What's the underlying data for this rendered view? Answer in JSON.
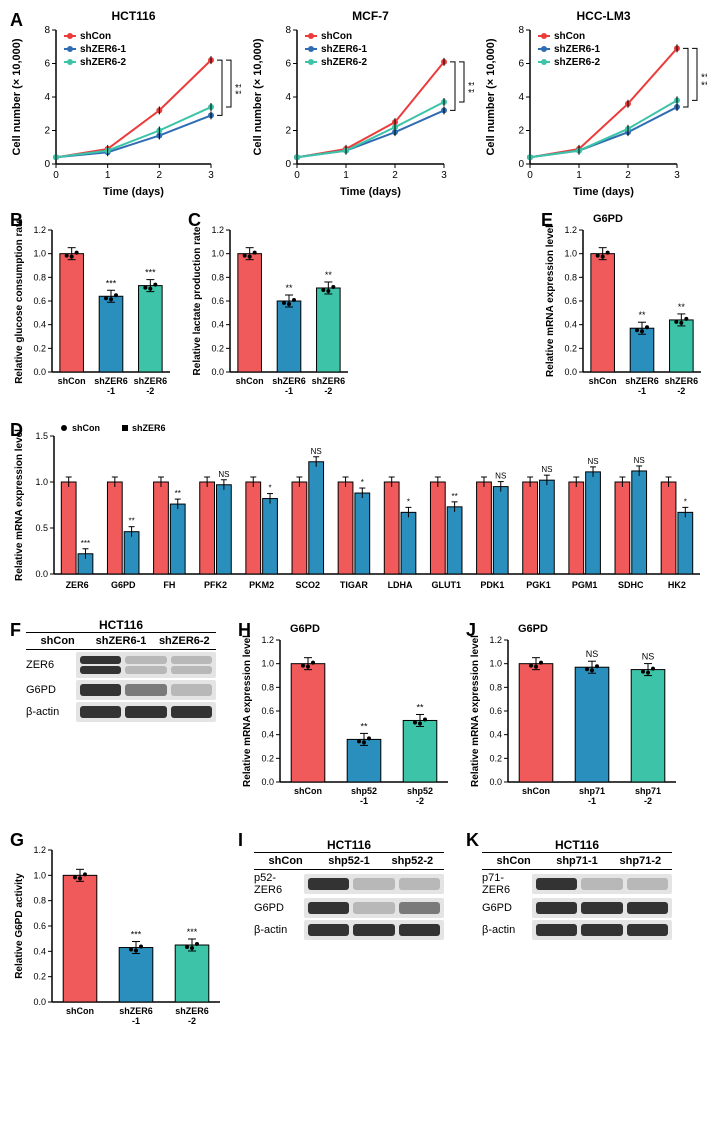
{
  "colors": {
    "red": "#ec3b3b",
    "blue": "#2e6db4",
    "teal": "#3cc3a8",
    "red_bar": "#f15a5a",
    "blue_bar": "#2a8fbd",
    "teal_bar": "#3cc3a8",
    "black": "#000000"
  },
  "panelA": {
    "charts": [
      {
        "title": "HCT116",
        "legend": [
          "shCon",
          "shZER6-1",
          "shZER6-2"
        ],
        "x_label": "Time (days)",
        "y_label": "Cell number (× 10,000)",
        "x": [
          0,
          1,
          2,
          3
        ],
        "ylim": [
          0,
          8
        ],
        "ytick": 2,
        "series": [
          {
            "color": "#ec3b3b",
            "y": [
              0.4,
              0.9,
              3.2,
              6.2
            ]
          },
          {
            "color": "#2e6db4",
            "y": [
              0.4,
              0.7,
              1.7,
              2.9
            ]
          },
          {
            "color": "#3cc3a8",
            "y": [
              0.4,
              0.8,
              2.0,
              3.4
            ]
          }
        ],
        "sig": [
          "**",
          "***"
        ]
      },
      {
        "title": "MCF-7",
        "legend": [
          "shCon",
          "shZER6-1",
          "shZER6-2"
        ],
        "x_label": "Time (days)",
        "y_label": "Cell number (× 10,000)",
        "x": [
          0,
          1,
          2,
          3
        ],
        "ylim": [
          0,
          8
        ],
        "ytick": 2,
        "series": [
          {
            "color": "#ec3b3b",
            "y": [
              0.4,
              0.9,
              2.5,
              6.1
            ]
          },
          {
            "color": "#2e6db4",
            "y": [
              0.4,
              0.8,
              1.9,
              3.2
            ]
          },
          {
            "color": "#3cc3a8",
            "y": [
              0.4,
              0.8,
              2.2,
              3.7
            ]
          }
        ],
        "sig": [
          "**",
          "**"
        ]
      },
      {
        "title": "HCC-LM3",
        "legend": [
          "shCon",
          "shZER6-1",
          "shZER6-2"
        ],
        "x_label": "Time (days)",
        "y_label": "Cell number (× 10,000)",
        "x": [
          0,
          1,
          2,
          3
        ],
        "ylim": [
          0,
          8
        ],
        "ytick": 2,
        "series": [
          {
            "color": "#ec3b3b",
            "y": [
              0.4,
              0.9,
              3.6,
              6.9
            ]
          },
          {
            "color": "#2e6db4",
            "y": [
              0.4,
              0.8,
              1.9,
              3.4
            ]
          },
          {
            "color": "#3cc3a8",
            "y": [
              0.4,
              0.8,
              2.1,
              3.8
            ]
          }
        ],
        "sig": [
          "***",
          "***"
        ]
      }
    ]
  },
  "panelB": {
    "y_label": "Relative glucose consumption rate",
    "ylim": [
      0,
      1.2
    ],
    "ytick": 0.2,
    "cats": [
      "shCon",
      "shZER6\n-1",
      "shZER6\n-2"
    ],
    "vals": [
      1.0,
      0.64,
      0.73
    ],
    "colors": [
      "#f15a5a",
      "#2a8fbd",
      "#3cc3a8"
    ],
    "sig": [
      "",
      "***",
      "***"
    ]
  },
  "panelC": {
    "y_label": "Relative lactate production rate",
    "ylim": [
      0,
      1.2
    ],
    "ytick": 0.2,
    "cats": [
      "shCon",
      "shZER6\n-1",
      "shZER6\n-2"
    ],
    "vals": [
      1.0,
      0.6,
      0.71
    ],
    "colors": [
      "#f15a5a",
      "#2a8fbd",
      "#3cc3a8"
    ],
    "sig": [
      "",
      "**",
      "**"
    ]
  },
  "panelE": {
    "title": "G6PD",
    "y_label": "Relative mRNA expression level",
    "ylim": [
      0,
      1.2
    ],
    "ytick": 0.2,
    "cats": [
      "shCon",
      "shZER6\n-1",
      "shZER6\n-2"
    ],
    "vals": [
      1.0,
      0.37,
      0.44
    ],
    "colors": [
      "#f15a5a",
      "#2a8fbd",
      "#3cc3a8"
    ],
    "sig": [
      "",
      "**",
      "**"
    ]
  },
  "panelD": {
    "y_label": "Relative mRNA expression level",
    "ylim": [
      0,
      1.5
    ],
    "ytick": 0.5,
    "legend": [
      "shCon",
      "shZER6"
    ],
    "genes": [
      "ZER6",
      "G6PD",
      "FH",
      "PFK2",
      "PKM2",
      "SCO2",
      "TIGAR",
      "LDHA",
      "GLUT1",
      "PDK1",
      "PGK1",
      "PGM1",
      "SDHC",
      "HK2"
    ],
    "shCon": [
      1.0,
      1.0,
      1.0,
      1.0,
      1.0,
      1.0,
      1.0,
      1.0,
      1.0,
      1.0,
      1.0,
      1.0,
      1.0,
      1.0
    ],
    "shZER6": [
      0.22,
      0.46,
      0.76,
      0.97,
      0.82,
      1.22,
      0.88,
      0.67,
      0.73,
      0.95,
      1.02,
      1.11,
      1.12,
      0.67
    ],
    "sig": [
      "***",
      "**",
      "**",
      "NS",
      "*",
      "NS",
      "*",
      "*",
      "**",
      "NS",
      "NS",
      "NS",
      "NS",
      "*"
    ]
  },
  "panelF": {
    "title": "HCT116",
    "headers": [
      "shCon",
      "shZER6-1",
      "shZER6-2"
    ],
    "rows": [
      {
        "label": "ZER6",
        "intensity": [
          "strong",
          "faint",
          "faint"
        ],
        "double": true
      },
      {
        "label": "G6PD",
        "intensity": [
          "strong",
          "med",
          "faint"
        ]
      },
      {
        "label": "β-actin",
        "intensity": [
          "strong",
          "strong",
          "strong"
        ]
      }
    ]
  },
  "panelG": {
    "y_label": "Relative G6PD activity",
    "ylim": [
      0,
      1.2
    ],
    "ytick": 0.2,
    "cats": [
      "shCon",
      "shZER6\n-1",
      "shZER6\n-2"
    ],
    "vals": [
      1.0,
      0.43,
      0.45
    ],
    "colors": [
      "#f15a5a",
      "#2a8fbd",
      "#3cc3a8"
    ],
    "sig": [
      "",
      "***",
      "***"
    ]
  },
  "panelH": {
    "title": "G6PD",
    "y_label": "Relative mRNA expression level",
    "ylim": [
      0,
      1.2
    ],
    "ytick": 0.2,
    "cats": [
      "shCon",
      "shp52\n-1",
      "shp52\n-2"
    ],
    "vals": [
      1.0,
      0.36,
      0.52
    ],
    "colors": [
      "#f15a5a",
      "#2a8fbd",
      "#3cc3a8"
    ],
    "sig": [
      "",
      "**",
      "**"
    ]
  },
  "panelJ": {
    "title": "G6PD",
    "y_label": "Relative mRNA expression level",
    "ylim": [
      0,
      1.2
    ],
    "ytick": 0.2,
    "cats": [
      "shCon",
      "shp71\n-1",
      "shp71\n-2"
    ],
    "vals": [
      1.0,
      0.97,
      0.95
    ],
    "colors": [
      "#f15a5a",
      "#2a8fbd",
      "#3cc3a8"
    ],
    "sig": [
      "",
      "NS",
      "NS"
    ]
  },
  "panelI": {
    "title": "HCT116",
    "headers": [
      "shCon",
      "shp52-1",
      "shp52-2"
    ],
    "rows": [
      {
        "label": "p52-ZER6",
        "intensity": [
          "strong",
          "faint",
          "faint"
        ]
      },
      {
        "label": "G6PD",
        "intensity": [
          "strong",
          "faint",
          "med"
        ]
      },
      {
        "label": "β-actin",
        "intensity": [
          "strong",
          "strong",
          "strong"
        ]
      }
    ]
  },
  "panelK": {
    "title": "HCT116",
    "headers": [
      "shCon",
      "shp71-1",
      "shp71-2"
    ],
    "rows": [
      {
        "label": "p71-ZER6",
        "intensity": [
          "strong",
          "faint",
          "faint"
        ]
      },
      {
        "label": "G6PD",
        "intensity": [
          "strong",
          "strong",
          "strong"
        ]
      },
      {
        "label": "β-actin",
        "intensity": [
          "strong",
          "strong",
          "strong"
        ]
      }
    ]
  }
}
